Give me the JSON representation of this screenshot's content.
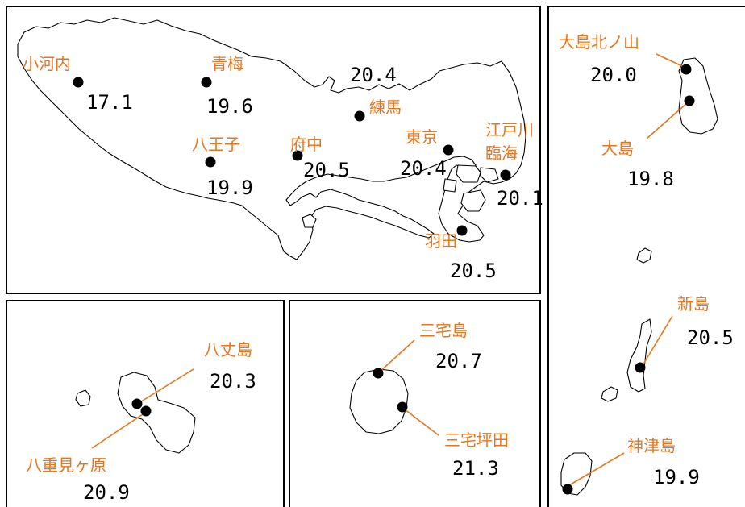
{
  "colors": {
    "label": "#e8741e",
    "value": "#000000",
    "border": "#000000"
  },
  "stations": [
    {
      "name": "小河内",
      "value": "17.1"
    },
    {
      "name": "青梅",
      "value": "19.6"
    },
    {
      "name": "練馬",
      "value": "20.4"
    },
    {
      "name": "八王子",
      "value": "19.9"
    },
    {
      "name": "府中",
      "value": "20.5"
    },
    {
      "name": "東京",
      "value": "20.4"
    },
    {
      "name": "江戸川",
      "name2": "臨海",
      "value": "20.1"
    },
    {
      "name": "羽田",
      "value": "20.5"
    },
    {
      "name": "大島北ノ山",
      "value": "20.0"
    },
    {
      "name": "大島",
      "value": "19.8"
    },
    {
      "name": "新島",
      "value": "20.5"
    },
    {
      "name": "神津島",
      "value": "19.9"
    },
    {
      "name": "三宅島",
      "value": "20.7"
    },
    {
      "name": "三宅坪田",
      "value": "21.3"
    },
    {
      "name": "八丈島",
      "value": "20.3"
    },
    {
      "name": "八重見ヶ原",
      "value": "20.9"
    }
  ]
}
